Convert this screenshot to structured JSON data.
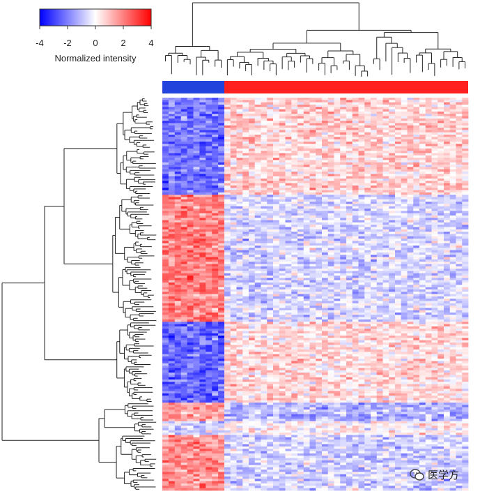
{
  "chart_data": {
    "type": "heatmap",
    "title": "",
    "xlabel": "",
    "ylabel": "",
    "legend": {
      "label": "Normalized intensity",
      "ticks": [
        "-4",
        "-2",
        "0",
        "2",
        "4"
      ],
      "range": [
        -4,
        4
      ],
      "colors": {
        "low": "#0000ff",
        "mid": "#ffffff",
        "high": "#ff0000"
      },
      "position": "top-left"
    },
    "column_groups": [
      {
        "color": "#2244dd",
        "count": 10
      },
      {
        "color": "#ff2020",
        "count": 40
      }
    ],
    "row_blocks": [
      {
        "rows": 42,
        "group1_mean": -2.2,
        "group2_mean": 0.7
      },
      {
        "rows": 55,
        "group1_mean": 2.0,
        "group2_mean": -0.6
      },
      {
        "rows": 35,
        "group1_mean": -2.4,
        "group2_mean": 0.6
      },
      {
        "rows": 8,
        "group1_mean": 1.6,
        "group2_mean": -1.1
      },
      {
        "rows": 6,
        "group1_mean": -0.8,
        "group2_mean": 0.1
      },
      {
        "rows": 24,
        "group1_mean": 1.8,
        "group2_mean": -0.7
      }
    ],
    "grid": false,
    "column_dendrogram": true,
    "row_dendrogram": true
  },
  "watermark": {
    "text": "医学方",
    "icon": "wechat-icon"
  }
}
